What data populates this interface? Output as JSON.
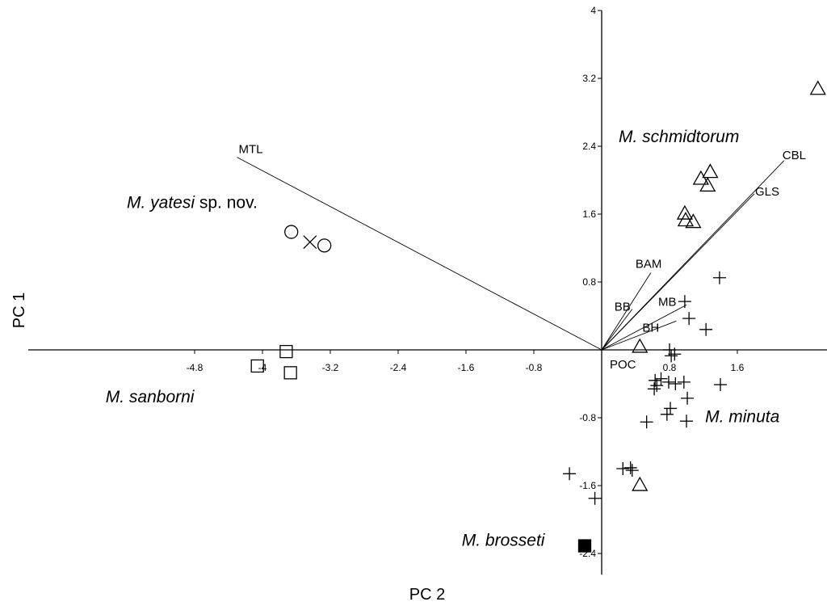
{
  "chart_data": {
    "type": "scatter",
    "xlabel": "PC 2",
    "ylabel": "PC 1",
    "xlim": [
      -5.0,
      2.6
    ],
    "ylim": [
      -2.65,
      4.0
    ],
    "x_ticks": [
      {
        "value": -4.8,
        "label": "-4.8"
      },
      {
        "value": -4.0,
        "label": "-4"
      },
      {
        "value": -3.2,
        "label": "-3.2"
      },
      {
        "value": -2.4,
        "label": "-2.4"
      },
      {
        "value": -1.6,
        "label": "-1.6"
      },
      {
        "value": -0.8,
        "label": "-0.8"
      },
      {
        "value": 0.8,
        "label": "0.8"
      },
      {
        "value": 1.6,
        "label": "1.6"
      }
    ],
    "y_ticks": [
      {
        "value": 4.0,
        "label": "4"
      },
      {
        "value": 3.2,
        "label": "3.2"
      },
      {
        "value": 2.4,
        "label": "2.4"
      },
      {
        "value": 1.6,
        "label": "1.6"
      },
      {
        "value": 0.8,
        "label": "0.8"
      },
      {
        "value": -0.8,
        "label": "-0.8"
      },
      {
        "value": -1.6,
        "label": "-1.6"
      },
      {
        "value": -2.4,
        "label": "-2.4"
      }
    ],
    "series": [
      {
        "name": "M. yatesi sp. nov.",
        "marker": "circle",
        "points": [
          [
            -3.66,
            1.39
          ],
          [
            -3.27,
            1.23
          ]
        ]
      },
      {
        "name": "",
        "marker": "x",
        "points": [
          [
            -3.44,
            1.27
          ]
        ]
      },
      {
        "name": "M. sanborni",
        "marker": "square",
        "points": [
          [
            -3.72,
            -0.02
          ],
          [
            -4.06,
            -0.19
          ],
          [
            -3.67,
            -0.27
          ]
        ]
      },
      {
        "name": "M. schmidtorum",
        "marker": "triangle",
        "points": [
          [
            2.55,
            3.07
          ],
          [
            1.28,
            2.09
          ],
          [
            1.17,
            2.01
          ],
          [
            1.25,
            1.93
          ],
          [
            0.98,
            1.6
          ],
          [
            0.99,
            1.52
          ],
          [
            1.08,
            1.5
          ],
          [
            0.45,
            0.03
          ],
          [
            0.45,
            -1.6
          ]
        ]
      },
      {
        "name": "M. minuta",
        "marker": "plus",
        "points": [
          [
            1.39,
            0.85
          ],
          [
            0.98,
            0.57
          ],
          [
            1.03,
            0.37
          ],
          [
            1.23,
            0.24
          ],
          [
            0.8,
            0.0
          ],
          [
            0.86,
            -0.05
          ],
          [
            0.82,
            -0.07
          ],
          [
            0.79,
            -0.38
          ],
          [
            0.87,
            -0.4
          ],
          [
            0.97,
            -0.38
          ],
          [
            0.7,
            -0.34
          ],
          [
            0.63,
            -0.36
          ],
          [
            0.65,
            -0.42
          ],
          [
            0.62,
            -0.46
          ],
          [
            1.01,
            -0.57
          ],
          [
            1.4,
            -0.41
          ],
          [
            0.81,
            -0.69
          ],
          [
            0.77,
            -0.76
          ],
          [
            1.0,
            -0.84
          ],
          [
            0.53,
            -0.85
          ],
          [
            0.25,
            -1.4
          ],
          [
            0.34,
            -1.39
          ],
          [
            0.36,
            -1.42
          ],
          [
            -0.38,
            -1.46
          ],
          [
            -0.08,
            -1.75
          ]
        ]
      },
      {
        "name": "M. brosseti",
        "marker": "filled-square",
        "points": [
          [
            -0.2,
            -2.31
          ]
        ]
      }
    ],
    "vectors": [
      {
        "label": "MTL",
        "x": -4.3,
        "y": 2.27
      },
      {
        "label": "CBL",
        "x": 2.15,
        "y": 2.23
      },
      {
        "label": "GLS",
        "x": 1.8,
        "y": 1.84
      },
      {
        "label": "BAM",
        "x": 0.58,
        "y": 0.91
      },
      {
        "label": "BB",
        "x": 0.36,
        "y": 0.48
      },
      {
        "label": "MB",
        "x": 1.0,
        "y": 0.53
      },
      {
        "label": "BH",
        "x": 0.88,
        "y": 0.34
      },
      {
        "label": "POC",
        "x": 0.05,
        "y": 0.0
      }
    ],
    "group_labels": [
      {
        "prefix": "M. yatesi",
        "suffix": " sp. nov.",
        "x": -5.6,
        "y": 1.67
      },
      {
        "prefix": "M. sanborni",
        "suffix": "",
        "x": -5.85,
        "y": -0.62
      },
      {
        "prefix": "M. schmidtorum",
        "suffix": "",
        "x": 0.2,
        "y": 2.45
      },
      {
        "prefix": "M. minuta",
        "suffix": "",
        "x": 1.22,
        "y": -0.85
      },
      {
        "prefix": "M. brosseti",
        "suffix": "",
        "x": -1.65,
        "y": -2.31
      }
    ]
  }
}
